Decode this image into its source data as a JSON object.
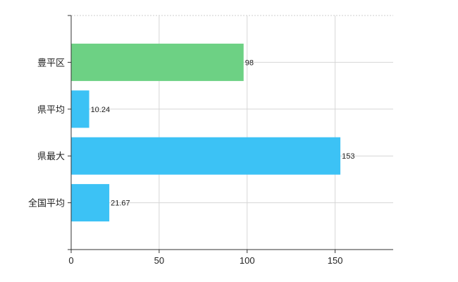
{
  "chart_data": {
    "type": "bar",
    "orientation": "horizontal",
    "categories": [
      "豊平区",
      "県平均",
      "県最大",
      "全国平均"
    ],
    "values": [
      98,
      10.24,
      153,
      21.67
    ],
    "value_labels": [
      "98",
      "10.24",
      "153",
      "21.67"
    ],
    "bar_colors": [
      "#6dd184",
      "#3cc2f5",
      "#3cc2f5",
      "#3cc2f5"
    ],
    "xlim": [
      0,
      183
    ],
    "xticks": [
      0,
      50,
      100,
      150
    ],
    "xtick_labels": [
      "0",
      "50",
      "100",
      "150"
    ],
    "grid": true
  }
}
